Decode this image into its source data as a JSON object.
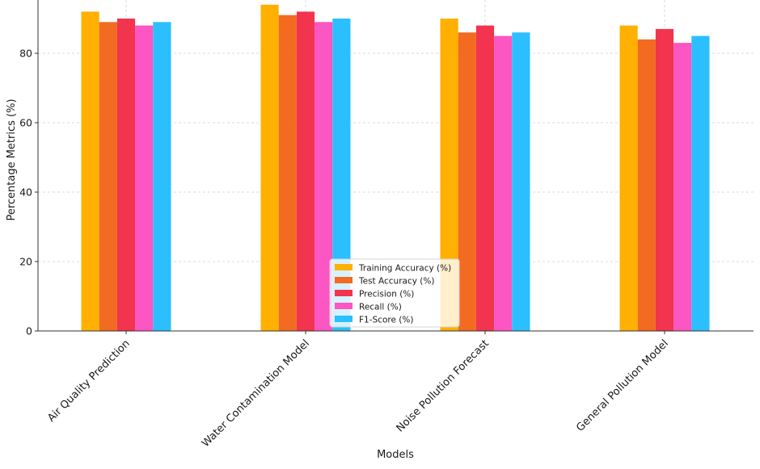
{
  "chart_data": {
    "type": "bar",
    "title": "",
    "xlabel": "Models",
    "ylabel": "Percentage Metrics (%)",
    "ylim": [
      0,
      95
    ],
    "yticks": [
      0,
      20,
      40,
      60,
      80
    ],
    "grid": true,
    "legend_position": "bottom-center",
    "categories": [
      "Air Quality Prediction",
      "Water Contamination Model",
      "Noise Pollution Forecast",
      "General Pollution Model"
    ],
    "series": [
      {
        "name": "Training Accuracy (%)",
        "color": "#FFB000",
        "values": [
          92,
          94,
          90,
          88
        ]
      },
      {
        "name": "Test Accuracy (%)",
        "color": "#F26B21",
        "values": [
          89,
          91,
          86,
          84
        ]
      },
      {
        "name": "Precision (%)",
        "color": "#F2344F",
        "values": [
          90,
          92,
          88,
          87
        ]
      },
      {
        "name": "Recall (%)",
        "color": "#FB56C1",
        "values": [
          88,
          89,
          85,
          83
        ]
      },
      {
        "name": "F1-Score (%)",
        "color": "#2BBFFF",
        "values": [
          89,
          90,
          86,
          85
        ]
      }
    ]
  }
}
